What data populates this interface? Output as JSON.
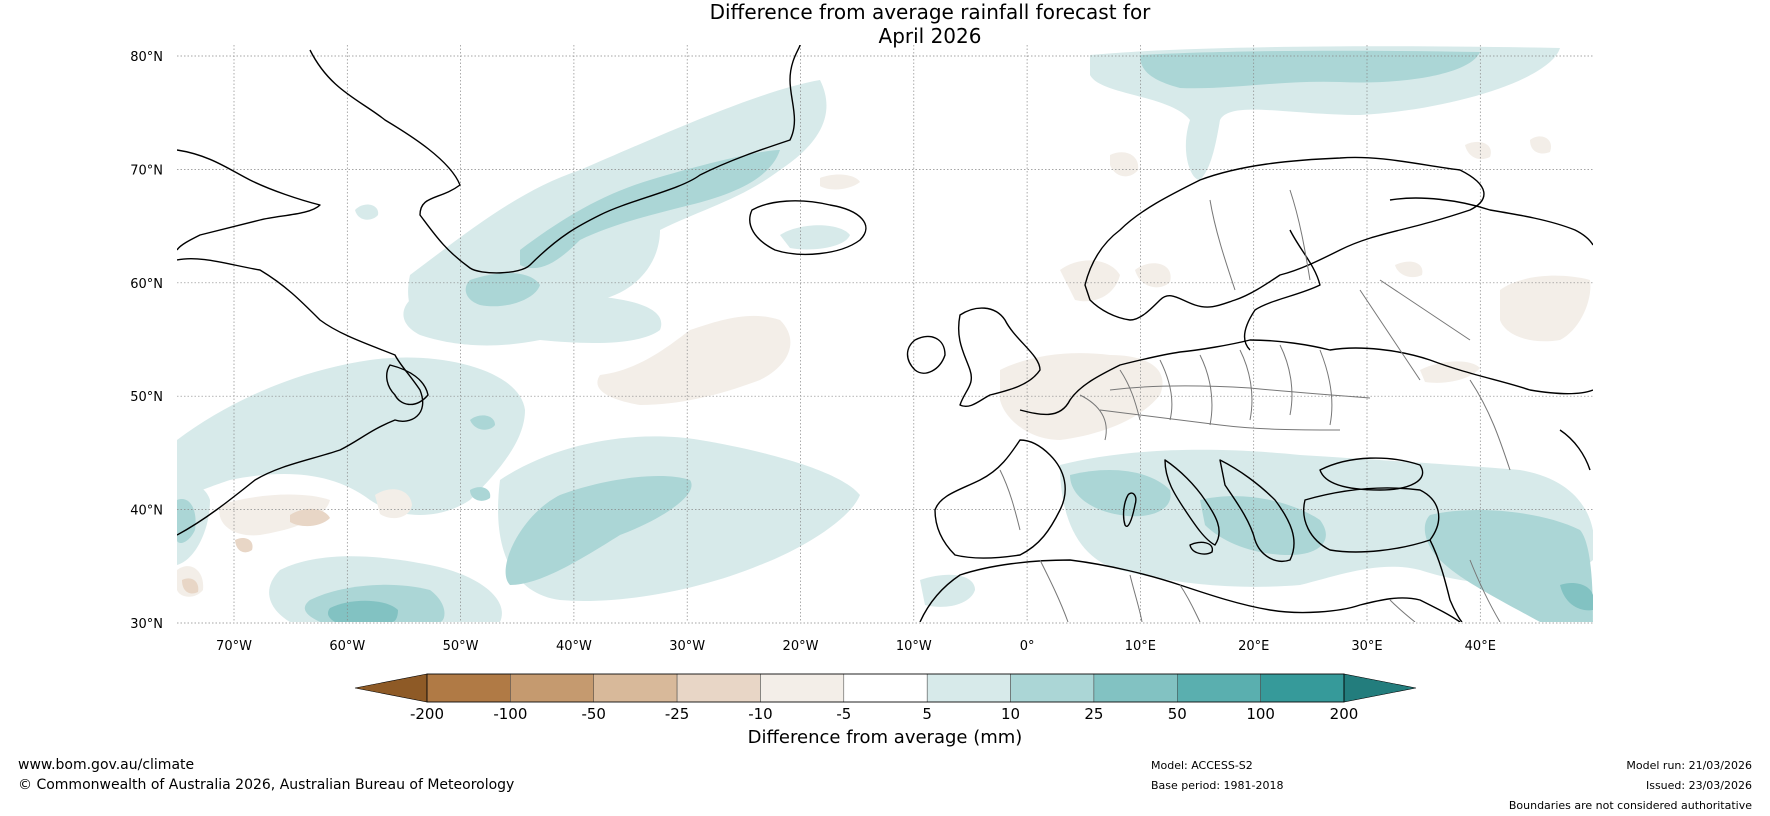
{
  "title": {
    "line1": "Difference from average rainfall forecast for",
    "line2": "April 2026"
  },
  "map": {
    "lat_labels": [
      "80°N",
      "70°N",
      "60°N",
      "50°N",
      "40°N",
      "30°N"
    ],
    "lon_labels": [
      "70°W",
      "60°W",
      "50°W",
      "40°W",
      "30°W",
      "20°W",
      "10°W",
      "0°",
      "10°E",
      "20°E",
      "30°E",
      "40°E"
    ],
    "region": "North Atlantic and Europe"
  },
  "colorbar": {
    "label": "Difference from average (mm)",
    "ticks": [
      "-200",
      "-100",
      "-50",
      "-25",
      "-10",
      "-5",
      "5",
      "10",
      "25",
      "50",
      "100",
      "200"
    ],
    "colors": [
      "#8e5a26",
      "#b07a45",
      "#c59a6f",
      "#d8b99a",
      "#e8d6c6",
      "#f3eee8",
      "#ffffff",
      "#d7eaea",
      "#abd6d6",
      "#82c2c2",
      "#5aafaf",
      "#369a9a",
      "#237d7d"
    ]
  },
  "footer": {
    "website": "www.bom.gov.au/climate",
    "copyright": "© Commonwealth of Australia 2026, Australian Bureau of Meteorology",
    "model": "Model: ACCESS-S2",
    "base_period": "Base period: 1981-2018",
    "model_run": "Model run: 21/03/2026",
    "issued": "Issued: 23/03/2026",
    "disclaimer": "Boundaries are not considered authoritative"
  }
}
